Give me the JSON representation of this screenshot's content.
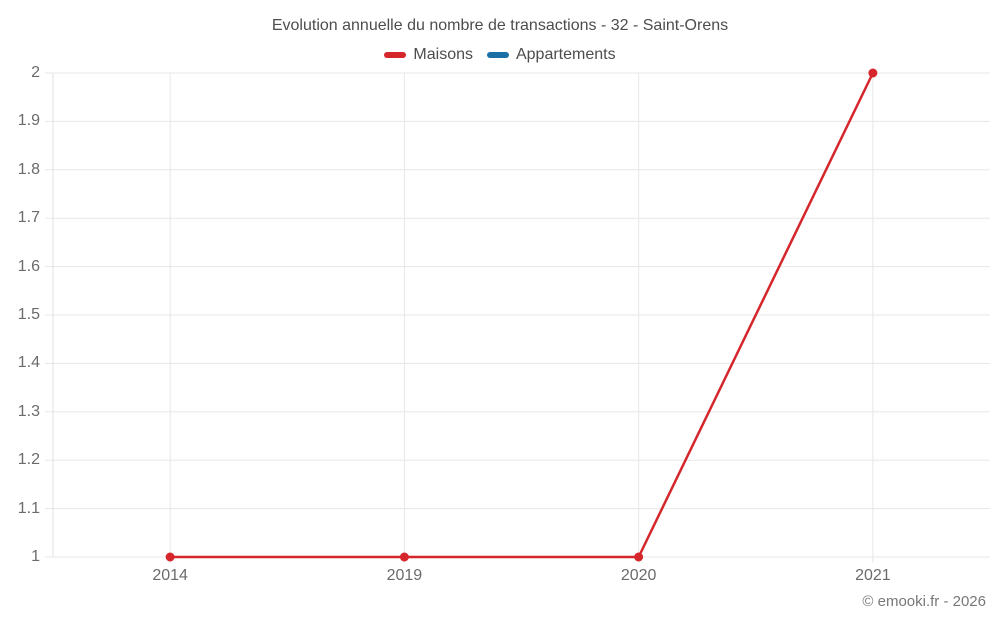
{
  "title": "Evolution annuelle du nombre de transactions - 32 - Saint-Orens",
  "legend": {
    "items": [
      {
        "label": "Maisons",
        "color": "#d5262c"
      },
      {
        "label": "Appartements",
        "color": "#1a6fa5"
      }
    ]
  },
  "footer": {
    "credit": "© emooki.fr - 2026"
  },
  "chart_data": {
    "type": "line",
    "categories": [
      "2014",
      "2019",
      "2020",
      "2021"
    ],
    "series": [
      {
        "name": "Maisons",
        "color": "#d5262c",
        "values": [
          1,
          1,
          1,
          2
        ]
      },
      {
        "name": "Appartements",
        "color": "#1a6fa5",
        "values": []
      }
    ],
    "title": "Evolution annuelle du nombre de transactions - 32 - Saint-Orens",
    "xlabel": "",
    "ylabel": "",
    "ylim": [
      1,
      2
    ],
    "y_tick_labels": [
      "1",
      "1.1",
      "1.2",
      "1.3",
      "1.4",
      "1.5",
      "1.6",
      "1.7",
      "1.8",
      "1.9",
      "2"
    ],
    "grid": true,
    "legend_position": "top",
    "marker": "circle"
  }
}
